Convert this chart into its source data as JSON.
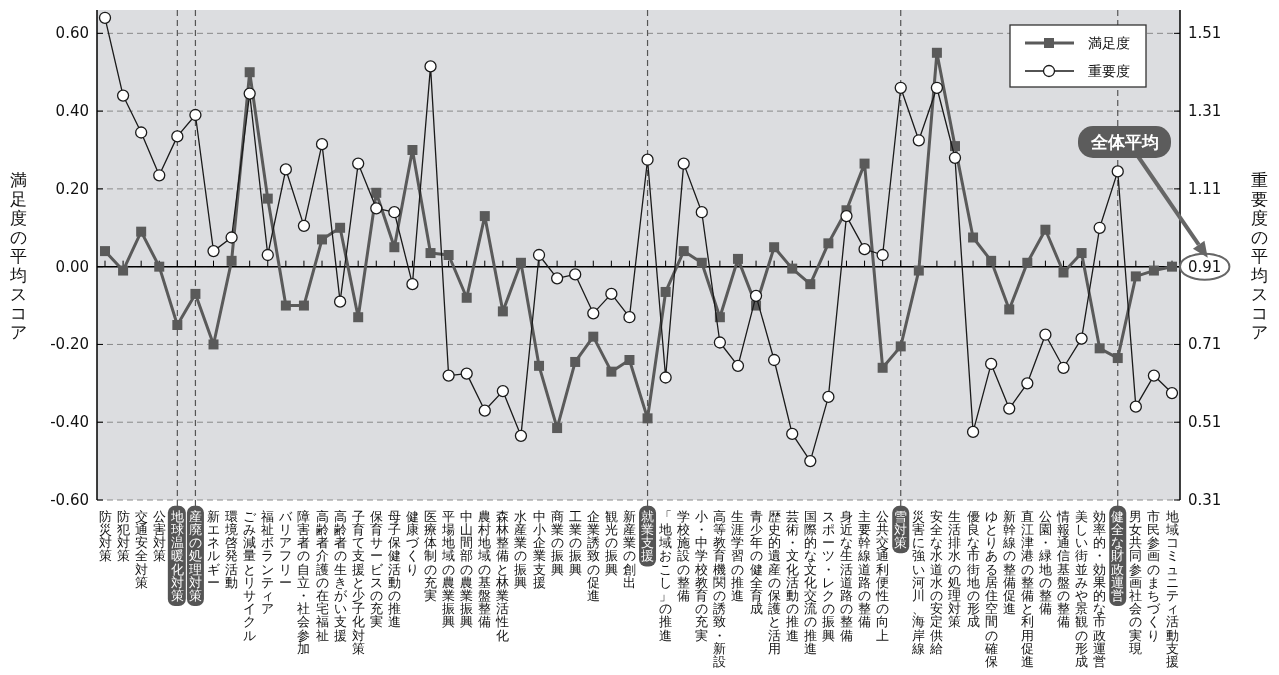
{
  "chart_data": {
    "type": "line",
    "categories": [
      "防災対策",
      "防犯対策",
      "交通安全対策",
      "公害対策",
      "地球温暖化対策",
      "産廃の処理対策",
      "新エネルギー",
      "環境啓発活動",
      "ごみ減量とリサイクル",
      "福祉ボランティア",
      "バリアフリー",
      "障害者の自立・社会参加",
      "高齢者介護の在宅福祉",
      "高齢者の生きがい支援",
      "子育て支援と少子化対策",
      "保育サービスの充実",
      "母子保健活動の推進",
      "健康づくり",
      "医療体制の充実",
      "平場地域の農業振興",
      "中山間部の農業振興",
      "農村地域の基盤整備",
      "森林整備と林業活性化",
      "水産業の振興",
      "中小企業支援",
      "商業の振興",
      "工業の振興",
      "企業誘致の促進",
      "観光の振興",
      "新産業の創出",
      "就業支援",
      "「地域おこし」の推進",
      "学校施設の整備",
      "小・中学校教育の充実",
      "高等教育機関の誘致・新設",
      "生涯学習の推進",
      "青少年の健全育成",
      "歴史的遺産の保護と活用",
      "芸術・文化活動の推進",
      "国際的な文化交流の推進",
      "スポーツ・レクの振興",
      "身近な生活道路の整備",
      "主要幹線道路の整備",
      "公共交通利便性の向上",
      "雪対策",
      "災害に強い河川、海岸線",
      "安全な水道水の安定供給",
      "生活排水の処理対策",
      "優良な市街地の形成",
      "ゆとりある居住空間の確保",
      "新幹線の整備促進",
      "直江津港の整備と利用促進",
      "公園・緑地の整備",
      "情報通信基盤の整備",
      "美しい街並みや景観の形成",
      "効率的・効果的な市政運営",
      "健全な財政運営",
      "男女共同参画社会の実現",
      "市民参画のまちづくり",
      "地域コミュニティ活動支援"
    ],
    "series": [
      {
        "name": "満足度",
        "color": "#5a5a5a",
        "marker": "square",
        "values": [
          0.04,
          -0.01,
          0.09,
          0.0,
          -0.15,
          -0.07,
          -0.2,
          0.015,
          0.5,
          0.175,
          -0.1,
          -0.1,
          0.07,
          0.1,
          -0.13,
          0.19,
          0.05,
          0.3,
          0.035,
          0.03,
          -0.08,
          0.13,
          -0.115,
          0.01,
          -0.255,
          -0.415,
          -0.245,
          -0.18,
          -0.27,
          -0.24,
          -0.39,
          -0.065,
          0.04,
          0.01,
          -0.13,
          0.02,
          -0.1,
          0.05,
          -0.005,
          -0.045,
          0.06,
          0.145,
          0.265,
          -0.26,
          -0.205,
          -0.01,
          0.55,
          0.31,
          0.075,
          0.015,
          -0.11,
          0.01,
          0.095,
          -0.015,
          0.035,
          -0.21,
          -0.235,
          -0.025,
          -0.01,
          0.0
        ]
      },
      {
        "name": "重要度",
        "color": "#1a1a1a",
        "marker": "circle",
        "axis": "y2",
        "values": [
          1.55,
          1.35,
          1.255,
          1.145,
          1.245,
          1.3,
          0.95,
          0.985,
          1.355,
          0.94,
          1.16,
          1.015,
          1.225,
          0.82,
          1.175,
          1.06,
          1.05,
          0.865,
          1.425,
          0.63,
          0.635,
          0.54,
          0.59,
          0.475,
          0.94,
          0.88,
          0.89,
          0.79,
          0.84,
          0.78,
          1.185,
          0.625,
          1.175,
          1.05,
          0.715,
          0.655,
          0.835,
          0.67,
          0.48,
          0.41,
          0.575,
          1.04,
          0.955,
          0.94,
          1.37,
          1.235,
          1.37,
          1.19,
          0.485,
          0.66,
          0.545,
          0.61,
          0.735,
          0.65,
          0.725,
          1.01,
          1.155,
          0.55,
          0.63,
          0.585
        ]
      }
    ],
    "ylabel": "満足度の平均スコア",
    "y2label": "重要度の平均スコア",
    "ylim": [
      -0.6,
      0.66
    ],
    "yticks": [
      {
        "value": -0.6,
        "label": "-0.60"
      },
      {
        "value": -0.4,
        "label": "-0.40"
      },
      {
        "value": -0.2,
        "label": "-0.20"
      },
      {
        "value": 0,
        "label": "0.00"
      },
      {
        "value": 0.2,
        "label": "0.20"
      },
      {
        "value": 0.4,
        "label": "0.40"
      },
      {
        "value": 0.6,
        "label": "0.60"
      }
    ],
    "y2lim": [
      0.31,
      1.57
    ],
    "y2ticks": [
      0.31,
      0.51,
      0.71,
      0.91,
      1.11,
      1.31,
      1.51
    ],
    "annotations": [
      "全体平均"
    ],
    "grid": "y",
    "legend": "top right",
    "ref_lines": [
      {
        "axis": "y2",
        "value": 0.91,
        "color": "#000000"
      },
      {
        "axis": "x",
        "value": "地球温暖化対策",
        "line_style": "dashed",
        "color": "#555555"
      },
      {
        "axis": "x",
        "value": "産廃の処理対策",
        "line_style": "dashed",
        "color": "#555555"
      },
      {
        "axis": "x",
        "value": "就業支援",
        "line_style": "dashed",
        "color": "#555555"
      },
      {
        "axis": "x",
        "value": "雪対策",
        "line_style": "dashed",
        "color": "#555555"
      },
      {
        "axis": "x",
        "value": "健全な財政運営",
        "line_style": "dashed",
        "color": "#555555"
      }
    ]
  }
}
